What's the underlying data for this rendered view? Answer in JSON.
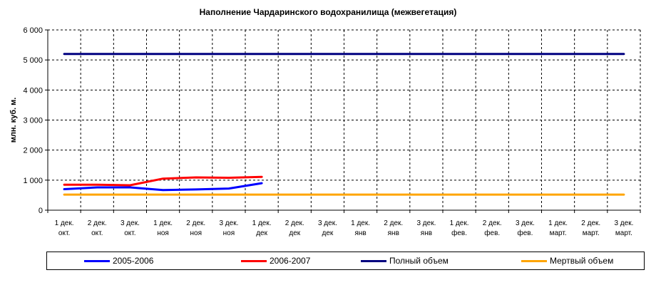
{
  "chart_data": {
    "type": "line",
    "title": "Наполнение Чардаринского водохранилища (межвегетация)",
    "ylabel": "млн. куб. м.",
    "xlabel": "",
    "ylim": [
      0,
      6000
    ],
    "yticks": [
      0,
      1000,
      2000,
      3000,
      4000,
      5000,
      6000
    ],
    "ytick_labels": [
      "0",
      "1 000",
      "2 000",
      "3 000",
      "4 000",
      "5 000",
      "6 000"
    ],
    "categories": [
      [
        "1 дек.",
        "окт."
      ],
      [
        "2 дек.",
        "окт."
      ],
      [
        "3 дек.",
        "окт."
      ],
      [
        "1 дек.",
        "ноя"
      ],
      [
        "2 дек.",
        "ноя"
      ],
      [
        "3 дек.",
        "ноя"
      ],
      [
        "1 дек.",
        "дек"
      ],
      [
        "2 дек.",
        "дек"
      ],
      [
        "3 дек.",
        "дек"
      ],
      [
        "1 дек.",
        "янв"
      ],
      [
        "2 дек.",
        "янв"
      ],
      [
        "3 дек.",
        "янв"
      ],
      [
        "1 дек.",
        "фев."
      ],
      [
        "2 дек.",
        "фев."
      ],
      [
        "3 дек.",
        "фев."
      ],
      [
        "1 дек.",
        "март."
      ],
      [
        "2 дек.",
        "март."
      ],
      [
        "3 дек.",
        "март."
      ]
    ],
    "grid": true,
    "legend_position": "bottom",
    "series": [
      {
        "name": "2005-2006",
        "color": "#0000ff",
        "values": [
          700,
          760,
          760,
          670,
          690,
          720,
          900,
          null,
          null,
          null,
          null,
          null,
          null,
          null,
          null,
          null,
          null,
          null
        ]
      },
      {
        "name": "2006-2007",
        "color": "#ff0000",
        "values": [
          850,
          850,
          830,
          1050,
          1090,
          1080,
          1110,
          null,
          null,
          null,
          null,
          null,
          null,
          null,
          null,
          null,
          null,
          null
        ]
      },
      {
        "name": "Полный объем",
        "color": "#000080",
        "values": [
          5200,
          5200,
          5200,
          5200,
          5200,
          5200,
          5200,
          5200,
          5200,
          5200,
          5200,
          5200,
          5200,
          5200,
          5200,
          5200,
          5200,
          5200
        ]
      },
      {
        "name": "Мертвый объем",
        "color": "#ffa500",
        "values": [
          520,
          520,
          520,
          520,
          520,
          520,
          520,
          520,
          520,
          520,
          520,
          520,
          520,
          520,
          520,
          520,
          520,
          520
        ]
      }
    ]
  }
}
